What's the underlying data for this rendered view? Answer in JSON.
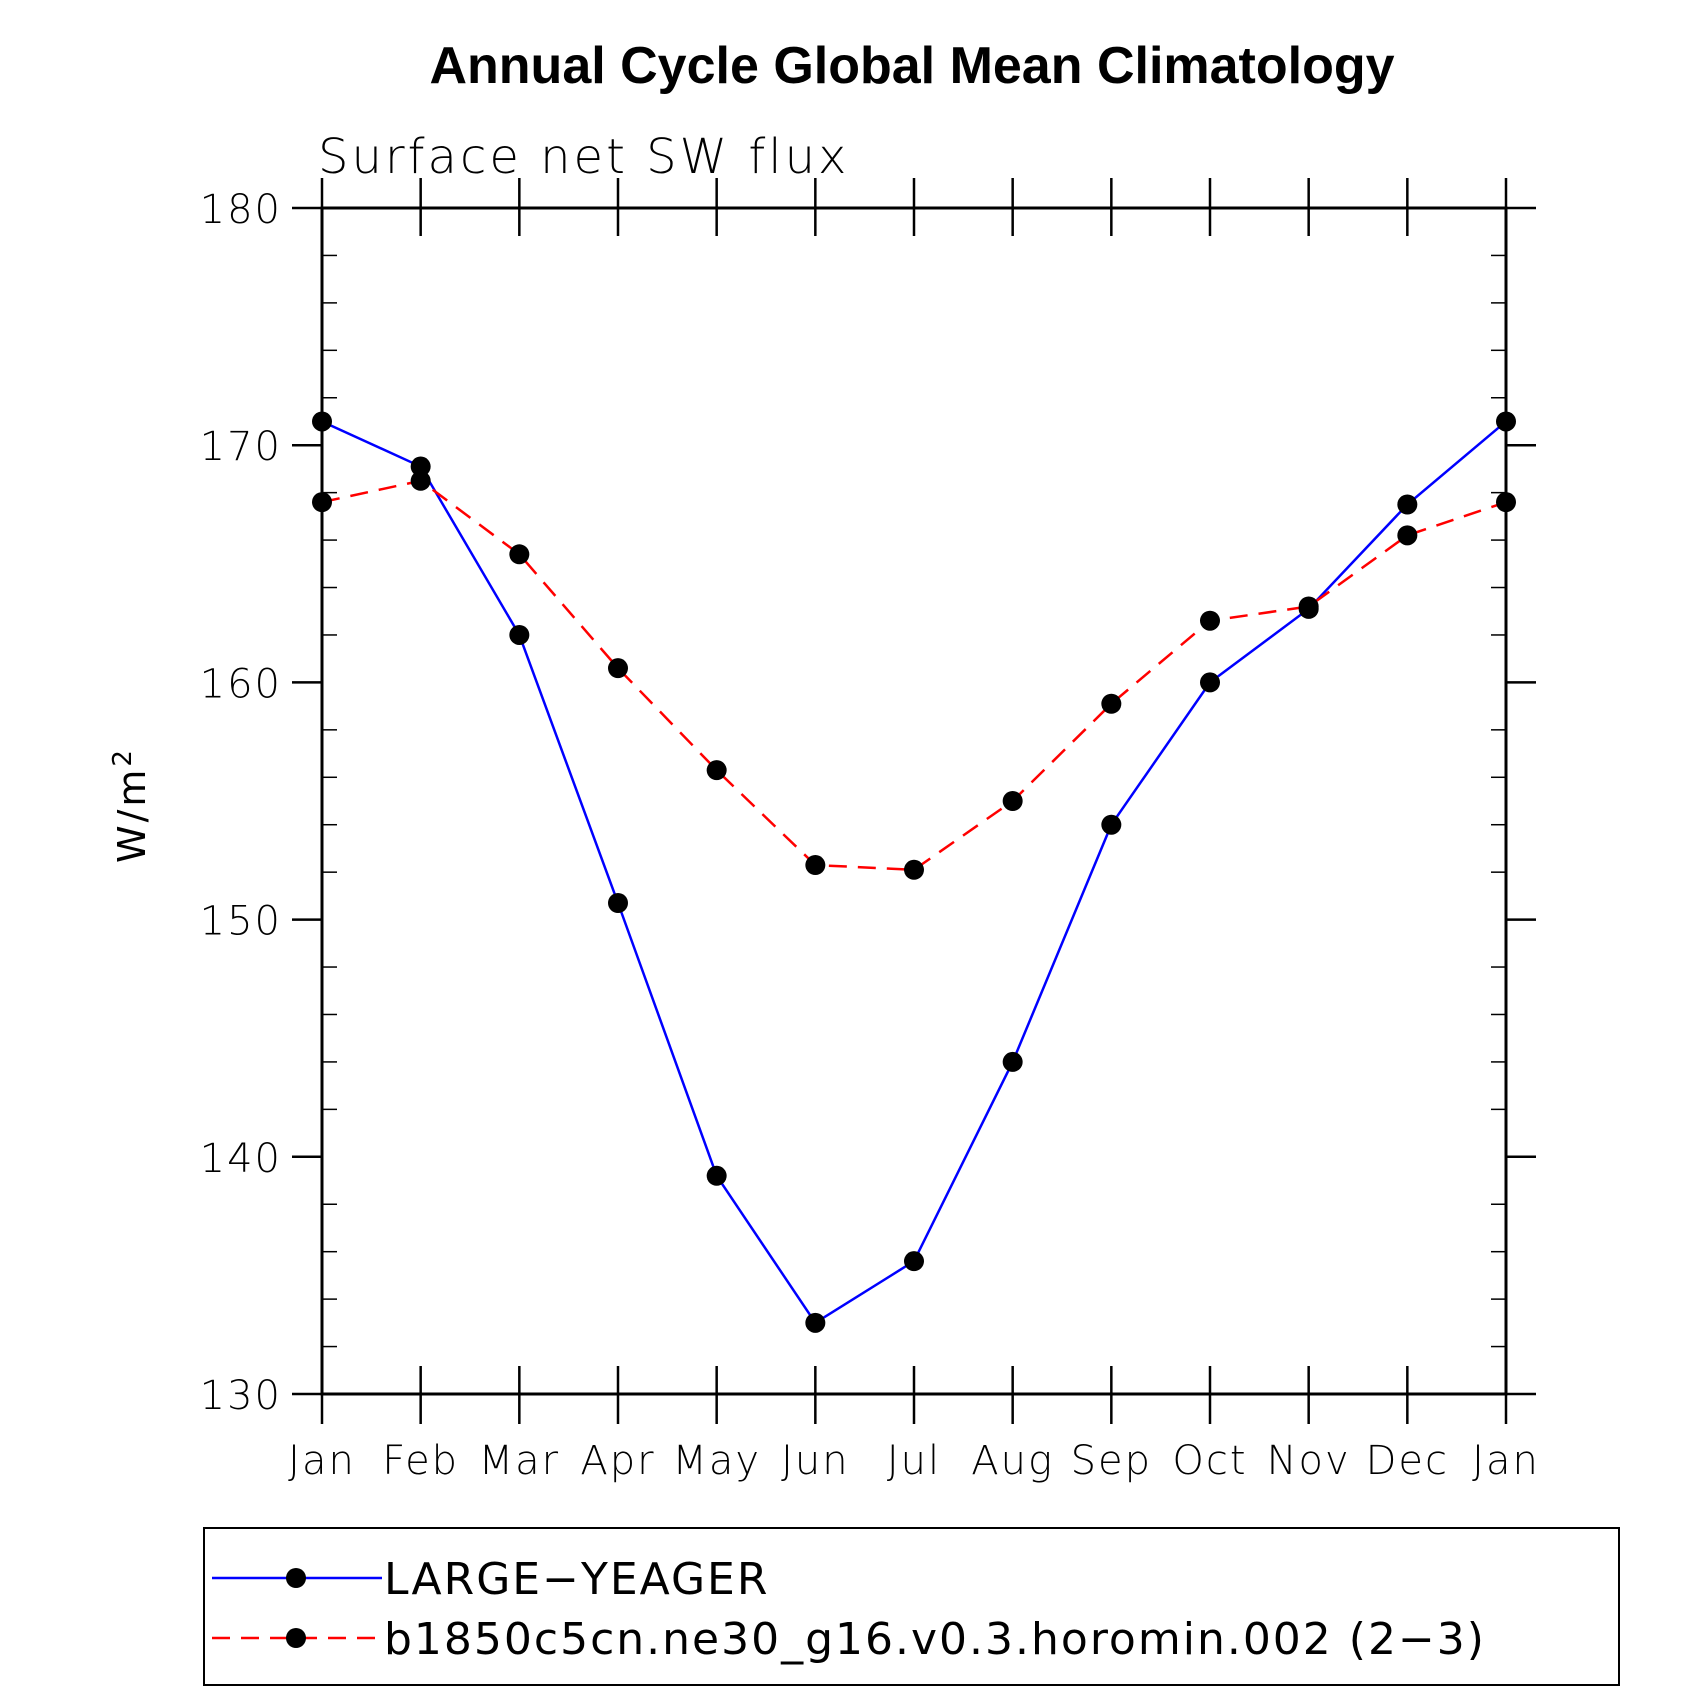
{
  "chart_data": {
    "type": "line",
    "title": "Annual Cycle Global Mean Climatology",
    "subtitle": "Surface net SW flux",
    "xlabel": "",
    "ylabel": "W/m",
    "ylabel_superscript": "2",
    "categories": [
      "Jan",
      "Feb",
      "Mar",
      "Apr",
      "May",
      "Jun",
      "Jul",
      "Aug",
      "Sep",
      "Oct",
      "Nov",
      "Dec",
      "Jan"
    ],
    "ylim": [
      130,
      180
    ],
    "yticks": [
      130,
      140,
      150,
      160,
      170,
      180
    ],
    "ytick_labels": [
      "130",
      "140",
      "150",
      "160",
      "170",
      "180"
    ],
    "series": [
      {
        "name": "LARGE−YEAGER",
        "color": "#0000ff",
        "dash": "solid",
        "values": [
          171.0,
          169.1,
          162.0,
          150.7,
          139.2,
          133.0,
          135.6,
          144.0,
          154.0,
          160.0,
          163.1,
          167.5,
          171.0
        ]
      },
      {
        "name": "b1850c5cn.ne30_g16.v0.3.horomin.002 (2−3)",
        "color": "#ff0000",
        "dash": "dashed",
        "values": [
          167.6,
          168.5,
          165.4,
          160.6,
          156.3,
          152.3,
          152.1,
          155.0,
          159.1,
          162.6,
          163.2,
          166.2,
          167.6
        ]
      }
    ],
    "marker_color": "#000000",
    "legend_position": "bottom"
  }
}
